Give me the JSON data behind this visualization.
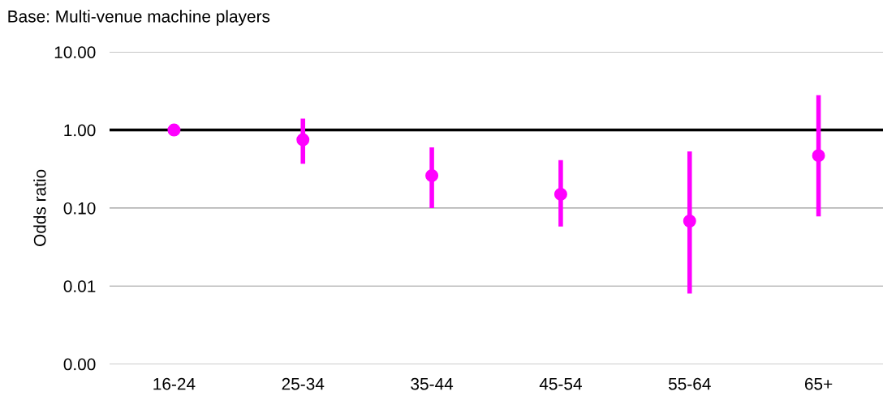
{
  "chart_data": {
    "type": "scatter",
    "title": "Base: Multi-venue machine players",
    "ylabel": "Odds ratio",
    "categories": [
      "16-24",
      "25-34",
      "35-44",
      "45-54",
      "55-64",
      "65+"
    ],
    "values": [
      1.0,
      0.75,
      0.26,
      0.15,
      0.068,
      0.47
    ],
    "errors": [
      null,
      [
        0.37,
        1.4
      ],
      [
        0.1,
        0.6
      ],
      [
        0.058,
        0.41
      ],
      [
        0.008,
        0.53
      ],
      [
        0.078,
        2.8
      ]
    ],
    "color": "#ff00ff",
    "marker": "circle",
    "log": "y",
    "grid": "y",
    "legend": false,
    "ylim": [
      0.001,
      10
    ],
    "yticks": [
      {
        "value": 0.001,
        "label": "0.00"
      },
      {
        "value": 0.01,
        "label": "0.01"
      },
      {
        "value": 0.1,
        "label": "0.10"
      },
      {
        "value": 1,
        "label": "1.00"
      },
      {
        "value": 10,
        "label": "10.00"
      }
    ],
    "ref_lines": [
      {
        "axis": "y",
        "value": 1,
        "label": null,
        "color": "#000000",
        "line_style": "solid"
      }
    ]
  }
}
